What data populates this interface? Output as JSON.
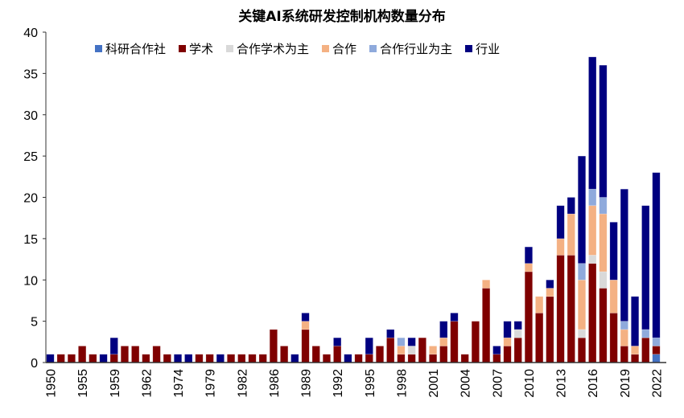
{
  "chart_data": {
    "type": "bar",
    "stacked": true,
    "title": "关键AI系统研发控制机构数量分布",
    "xlabel": "",
    "ylabel": "",
    "ylim": [
      0,
      40
    ],
    "yticks": [
      0,
      5,
      10,
      15,
      20,
      25,
      30,
      35,
      40
    ],
    "grid": false,
    "legend_position": "top",
    "categories": [
      "1950",
      "",
      "",
      "1955",
      "",
      "",
      "1959",
      "",
      "",
      "1962",
      "",
      "",
      "1974",
      "",
      "",
      "1979",
      "",
      "",
      "1982",
      "",
      "",
      "1986",
      "",
      "",
      "1989",
      "",
      "",
      "1992",
      "",
      "",
      "1995",
      "",
      "",
      "1998",
      "",
      "",
      "2001",
      "",
      "",
      "2004",
      "",
      "",
      "2007",
      "",
      "",
      "2010",
      "",
      "",
      "2013",
      "",
      "",
      "2016",
      "",
      "",
      "2019",
      "",
      "",
      "2022"
    ],
    "series": [
      {
        "name": "科研合作社",
        "color": "#4472C4",
        "values": [
          0,
          0,
          0,
          0,
          0,
          0,
          0,
          0,
          0,
          0,
          0,
          0,
          0,
          0,
          0,
          0,
          0,
          0,
          0,
          0,
          0,
          0,
          0,
          0,
          0,
          0,
          0,
          0,
          0,
          0,
          0,
          0,
          0,
          0,
          0,
          0,
          0,
          0,
          0,
          0,
          0,
          0,
          0,
          0,
          0,
          0,
          0,
          0,
          0,
          0,
          0,
          0,
          0,
          0,
          0,
          0,
          0,
          1
        ]
      },
      {
        "name": "学术",
        "color": "#7F0000",
        "values": [
          0,
          1,
          1,
          2,
          1,
          0,
          1,
          2,
          2,
          1,
          2,
          1,
          0,
          0,
          1,
          1,
          0,
          1,
          1,
          1,
          1,
          4,
          2,
          0,
          4,
          2,
          1,
          2,
          0,
          1,
          1,
          2,
          3,
          1,
          1,
          3,
          1,
          2,
          5,
          1,
          5,
          9,
          1,
          2,
          3,
          11,
          6,
          8,
          13,
          13,
          3,
          12,
          9,
          6,
          2,
          1,
          3,
          1
        ]
      },
      {
        "name": "合作学术为主",
        "color": "#D9D9D9",
        "values": [
          0,
          0,
          0,
          0,
          0,
          0,
          0,
          0,
          0,
          0,
          0,
          0,
          0,
          0,
          0,
          0,
          0,
          0,
          0,
          0,
          0,
          0,
          0,
          0,
          0,
          0,
          0,
          0,
          0,
          0,
          0,
          0,
          0,
          0,
          1,
          0,
          0,
          0,
          0,
          0,
          0,
          0,
          0,
          0,
          1,
          0,
          0,
          0,
          0,
          0,
          1,
          1,
          2,
          0,
          0,
          0,
          0,
          0
        ]
      },
      {
        "name": "合作",
        "color": "#F4B183",
        "values": [
          0,
          0,
          0,
          0,
          0,
          0,
          0,
          0,
          0,
          0,
          0,
          0,
          0,
          0,
          0,
          0,
          0,
          0,
          0,
          0,
          0,
          0,
          0,
          0,
          1,
          0,
          0,
          0,
          0,
          0,
          0,
          0,
          0,
          1,
          0,
          0,
          1,
          1,
          0,
          0,
          0,
          1,
          0,
          1,
          0,
          1,
          2,
          1,
          2,
          5,
          6,
          6,
          7,
          4,
          2,
          1,
          0,
          0
        ]
      },
      {
        "name": "合作行业为主",
        "color": "#8FAADC",
        "values": [
          0,
          0,
          0,
          0,
          0,
          0,
          0,
          0,
          0,
          0,
          0,
          0,
          0,
          0,
          0,
          0,
          0,
          0,
          0,
          0,
          0,
          0,
          0,
          0,
          0,
          0,
          0,
          0,
          0,
          0,
          0,
          0,
          0,
          1,
          0,
          0,
          0,
          0,
          0,
          0,
          0,
          0,
          0,
          0,
          0,
          0,
          0,
          0,
          0,
          0,
          2,
          2,
          2,
          0,
          1,
          0,
          1,
          1
        ]
      },
      {
        "name": "行业",
        "color": "#000080",
        "values": [
          1,
          0,
          0,
          0,
          0,
          1,
          2,
          0,
          0,
          0,
          0,
          0,
          1,
          1,
          0,
          0,
          1,
          0,
          0,
          0,
          0,
          0,
          0,
          1,
          1,
          0,
          0,
          1,
          1,
          0,
          2,
          0,
          1,
          0,
          1,
          0,
          0,
          2,
          1,
          0,
          0,
          0,
          1,
          2,
          1,
          2,
          0,
          1,
          4,
          2,
          13,
          16,
          16,
          7,
          16,
          6,
          15,
          20
        ]
      }
    ]
  }
}
